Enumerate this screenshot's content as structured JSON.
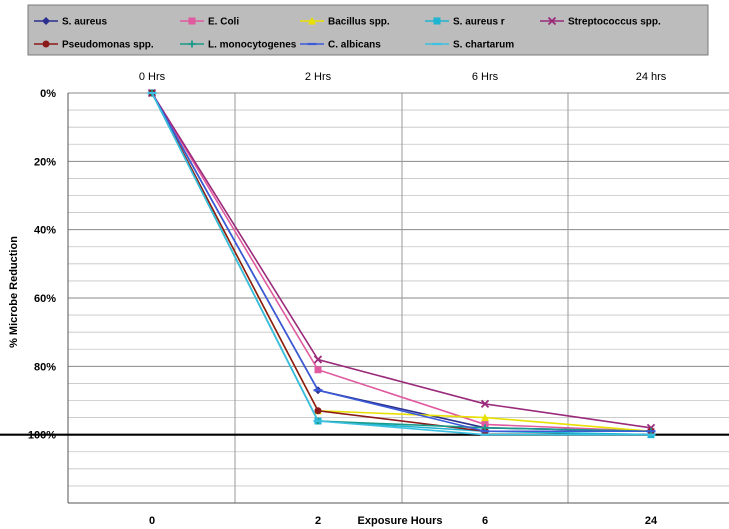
{
  "chart_data": {
    "type": "line",
    "title": "",
    "xlabel": "Exposure Hours",
    "ylabel": "% Microbe Reduction",
    "x": [
      0,
      2,
      6,
      24
    ],
    "x_tick_labels_bottom": [
      "0",
      "2",
      "6",
      "24"
    ],
    "x_tick_labels_top": [
      "0 Hrs",
      "2 Hrs",
      "6 Hrs",
      "24 hrs"
    ],
    "y_tick_labels": [
      "0%",
      "20%",
      "40%",
      "60%",
      "80%",
      "100%"
    ],
    "ylim": [
      0,
      120
    ],
    "y_inverted": true,
    "grid": true,
    "legend": "top",
    "reference_line": 100,
    "series": [
      {
        "name": "S. aureus",
        "color": "#2b2f8f",
        "marker": "diamond",
        "values": [
          0,
          87,
          98,
          99
        ]
      },
      {
        "name": "E. Coli",
        "color": "#e05aa0",
        "marker": "square",
        "values": [
          0,
          81,
          97,
          99
        ]
      },
      {
        "name": "Bacillus spp.",
        "color": "#e8e000",
        "marker": "triangle",
        "values": [
          0,
          93,
          95,
          99
        ]
      },
      {
        "name": "S. aureus r",
        "color": "#1eb4d2",
        "marker": "square",
        "values": [
          0,
          96,
          99,
          100
        ]
      },
      {
        "name": "Streptococcus spp.",
        "color": "#9a2a7a",
        "marker": "x",
        "values": [
          0,
          78,
          91,
          98
        ]
      },
      {
        "name": "Pseudomonas spp.",
        "color": "#8b1a1a",
        "marker": "circle",
        "values": [
          0,
          93,
          99,
          99
        ]
      },
      {
        "name": "L. monocytogenes",
        "color": "#1a9a8a",
        "marker": "plus",
        "values": [
          0,
          96,
          98,
          99
        ]
      },
      {
        "name": "C. albicans",
        "color": "#3a5ad8",
        "marker": "dash",
        "values": [
          0,
          87,
          99,
          99
        ]
      },
      {
        "name": "S. chartarum",
        "color": "#3ac0e0",
        "marker": "dash",
        "values": [
          0,
          96,
          100,
          100
        ]
      }
    ]
  }
}
